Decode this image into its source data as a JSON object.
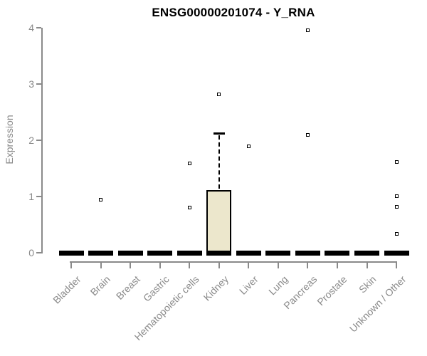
{
  "chart_data": {
    "type": "boxplot",
    "title": "ENSG00000201074 - Y_RNA",
    "ylabel": "Expression",
    "xlabel": "",
    "ylim": [
      0,
      4
    ],
    "yticks": [
      0,
      1,
      2,
      3,
      4
    ],
    "grid": false,
    "legend": null,
    "categories": [
      "Bladder",
      "Brain",
      "Breast",
      "Gastric",
      "Hematopoietic cells",
      "Kidney",
      "Liver",
      "Lung",
      "Pancreas",
      "Prostate",
      "Skin",
      "Unknown / Other"
    ],
    "series": [
      {
        "name": "Bladder",
        "q1": 0,
        "median": 0,
        "q3": 0,
        "whisker_low": 0,
        "whisker_high": 0,
        "outliers": []
      },
      {
        "name": "Brain",
        "q1": 0,
        "median": 0,
        "q3": 0,
        "whisker_low": 0,
        "whisker_high": 0,
        "outliers": [
          0.94
        ]
      },
      {
        "name": "Breast",
        "q1": 0,
        "median": 0,
        "q3": 0,
        "whisker_low": 0,
        "whisker_high": 0,
        "outliers": []
      },
      {
        "name": "Gastric",
        "q1": 0,
        "median": 0,
        "q3": 0,
        "whisker_low": 0,
        "whisker_high": 0,
        "outliers": []
      },
      {
        "name": "Hematopoietic cells",
        "q1": 0,
        "median": 0,
        "q3": 0,
        "whisker_low": 0,
        "whisker_high": 0,
        "outliers": [
          0.8,
          1.59
        ]
      },
      {
        "name": "Kidney",
        "q1": 0,
        "median": 0,
        "q3": 1.12,
        "whisker_low": 0,
        "whisker_high": 2.13,
        "outliers": [
          2.82
        ]
      },
      {
        "name": "Liver",
        "q1": 0,
        "median": 0,
        "q3": 0,
        "whisker_low": 0,
        "whisker_high": 0,
        "outliers": [
          1.89
        ]
      },
      {
        "name": "Lung",
        "q1": 0,
        "median": 0,
        "q3": 0,
        "whisker_low": 0,
        "whisker_high": 0,
        "outliers": []
      },
      {
        "name": "Pancreas",
        "q1": 0,
        "median": 0,
        "q3": 0,
        "whisker_low": 0,
        "whisker_high": 0,
        "outliers": [
          2.09,
          3.95
        ]
      },
      {
        "name": "Prostate",
        "q1": 0,
        "median": 0,
        "q3": 0,
        "whisker_low": 0,
        "whisker_high": 0,
        "outliers": []
      },
      {
        "name": "Skin",
        "q1": 0,
        "median": 0,
        "q3": 0,
        "whisker_low": 0,
        "whisker_high": 0,
        "outliers": []
      },
      {
        "name": "Unknown / Other",
        "q1": 0,
        "median": 0,
        "q3": 0,
        "whisker_low": 0,
        "whisker_high": 0,
        "outliers": [
          0.34,
          0.82,
          1.01,
          1.61
        ]
      }
    ],
    "colors": {
      "box_fill": "#ECE7CC",
      "box_border": "#000000",
      "median": "#000000",
      "outlier_fill": "#ffffff",
      "axis": "#8a8a8a",
      "tick_label": "#8a8a8a",
      "title": "#000000",
      "background": "#ffffff"
    }
  }
}
